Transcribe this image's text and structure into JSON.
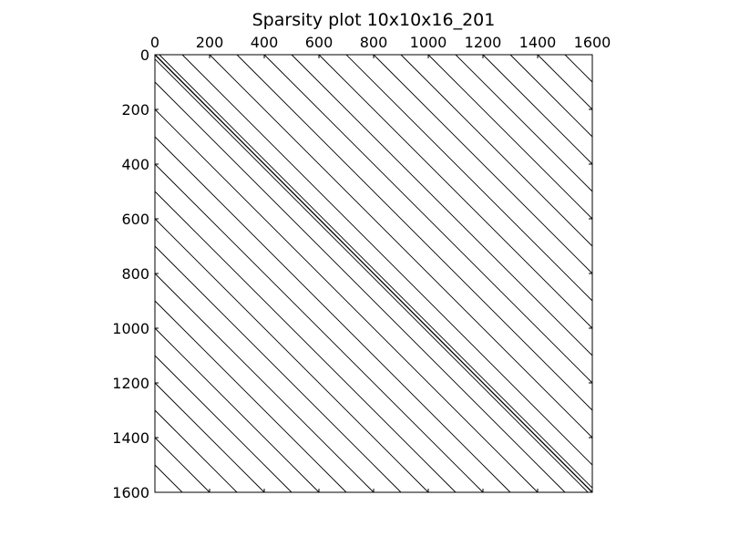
{
  "chart_data": {
    "type": "sparsity",
    "title": "Sparsity plot 10x10x16_201",
    "xlabel": "",
    "ylabel": "",
    "matrix_size": 1600,
    "xlim": [
      0,
      1600
    ],
    "ylim": [
      1600,
      0
    ],
    "x_axis_position": "top",
    "grid": false,
    "x_ticks": [
      0,
      200,
      400,
      600,
      800,
      1000,
      1200,
      1400,
      1600
    ],
    "x_tick_labels": [
      "0",
      "200",
      "400",
      "600",
      "800",
      "1000",
      "1200",
      "1400",
      "1600"
    ],
    "y_ticks": [
      0,
      200,
      400,
      600,
      800,
      1000,
      1200,
      1400,
      1600
    ],
    "y_tick_labels": [
      "0",
      "200",
      "400",
      "600",
      "800",
      "1000",
      "1200",
      "1400",
      "1600"
    ],
    "diagonal_offsets": [
      -1500,
      -1400,
      -1300,
      -1200,
      -1100,
      -1000,
      -900,
      -800,
      -700,
      -600,
      -500,
      -400,
      -300,
      -200,
      -100,
      0,
      100,
      200,
      300,
      400,
      500,
      600,
      700,
      800,
      900,
      1000,
      1100,
      1200,
      1300,
      1400,
      1500
    ],
    "near_diagonal_offsets": [
      -16,
      -1,
      1,
      16
    ],
    "marker_color": "#000000"
  }
}
